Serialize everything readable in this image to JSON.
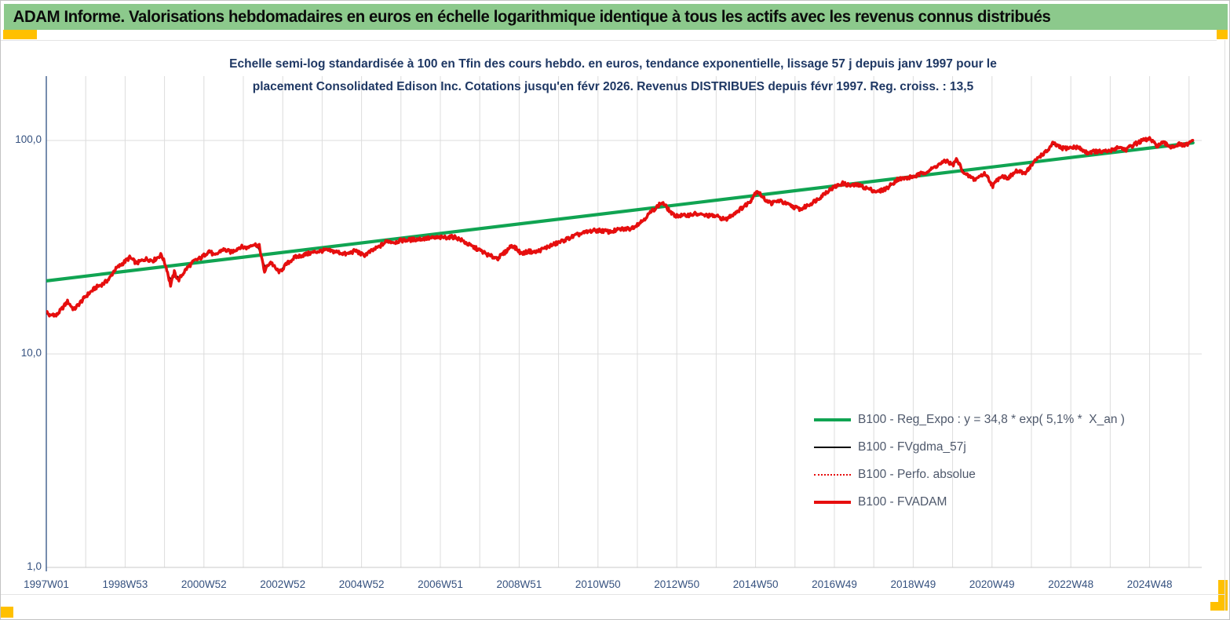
{
  "banner": {
    "text": "ADAM Informe. Valorisations hebdomadaires en euros en échelle logarithmique identique à tous les actifs avec les revenus connus distribués",
    "bg_color": "#8cc98c",
    "marker_color": "#ffc000"
  },
  "chart_data": {
    "type": "line",
    "title_line1": "Echelle semi-log standardisée à 100 en Tfin des cours hebdo. en euros, tendance exponentielle, lissage 57 j depuis janv 1997 pour le",
    "title_line2": "placement Consolidated Edison Inc. Cotations jusqu'en févr 2026. Revenus DISTRIBUES depuis févr 1997. Reg. croiss. : 13,5",
    "title_color": "#1F3864",
    "axes": {
      "y_scale": "log",
      "y_min": 1,
      "y_max": 200,
      "y_tick_values": [
        100,
        10,
        1
      ],
      "y_tick_labels": [
        "100,0",
        "10,0",
        "1,0"
      ],
      "x_start": 1997.0,
      "x_end": 2026.1,
      "x_gridline_interval_years": 1,
      "x_tick_labels": [
        "1997W01",
        "1998W53",
        "2000W52",
        "2002W52",
        "2004W52",
        "2006W51",
        "2008W51",
        "2010W50",
        "2012W50",
        "2014W50",
        "2016W49",
        "2018W49",
        "2020W49",
        "2022W48",
        "2024W48"
      ],
      "x_tick_interval_years": 2,
      "grid_color": "#dcdcdc",
      "axis_color": "#3d5c8c",
      "tick_label_color": "#35517f",
      "grid_on": true
    },
    "legend": {
      "position": "inside-right",
      "text_color": "#4e586b",
      "entries": [
        {
          "label": "B100 - Reg_Expo : y = 34,8 * exp( 5,1% *  X_an )",
          "color": "#10a452",
          "style": "thick"
        },
        {
          "label": "B100 - FVgdma_57j",
          "color": "#000000",
          "style": "medium"
        },
        {
          "label": "B100 - Perfo. absolue",
          "color": "#e60e0e",
          "style": "dotted"
        },
        {
          "label": "B100 - FVADAM",
          "color": "#e60e0e",
          "style": "thick"
        }
      ]
    },
    "series": [
      {
        "name": "B100 - Reg_Expo",
        "kind": "trend_exponential",
        "formula_shown": "y = 34,8 * exp( 5,1% * X_an )",
        "color": "#10a452",
        "points": [
          [
            1997.0,
            22.0
          ],
          [
            2026.1,
            97.5
          ]
        ]
      },
      {
        "name": "B100 - FVgdma_57j",
        "kind": "smoothed_moving_average_of_FVADAM",
        "color": "#000000"
      },
      {
        "name": "B100 - Perfo. absolue",
        "kind": "dotted_duplicate_of_FVADAM",
        "color": "#e60e0e"
      },
      {
        "name": "B100 - FVADAM",
        "kind": "weekly_valuation",
        "color": "#e60e0e",
        "final_value": 100,
        "points": [
          [
            1997.0,
            15.8
          ],
          [
            1997.1,
            15.0
          ],
          [
            1997.17,
            15.4
          ],
          [
            1997.25,
            15.1
          ],
          [
            1997.4,
            16.3
          ],
          [
            1997.54,
            17.6
          ],
          [
            1997.7,
            16.1
          ],
          [
            1997.85,
            17.3
          ],
          [
            1998.0,
            18.6
          ],
          [
            1998.26,
            20.5
          ],
          [
            1998.46,
            21.4
          ],
          [
            1998.6,
            22.5
          ],
          [
            1998.73,
            24.7
          ],
          [
            1998.92,
            26.4
          ],
          [
            1999.12,
            28.3
          ],
          [
            1999.29,
            26.6
          ],
          [
            1999.52,
            27.9
          ],
          [
            1999.72,
            27.4
          ],
          [
            1999.92,
            29.2
          ],
          [
            2000.05,
            25.3
          ],
          [
            2000.15,
            20.9
          ],
          [
            2000.25,
            24.1
          ],
          [
            2000.35,
            22.1
          ],
          [
            2000.55,
            25.0
          ],
          [
            2000.75,
            27.2
          ],
          [
            2000.94,
            28.3
          ],
          [
            2001.14,
            30.5
          ],
          [
            2001.27,
            28.7
          ],
          [
            2001.47,
            30.9
          ],
          [
            2001.7,
            30.0
          ],
          [
            2001.93,
            31.8
          ],
          [
            2002.1,
            31.4
          ],
          [
            2002.23,
            32.7
          ],
          [
            2002.4,
            32.2
          ],
          [
            2002.53,
            24.2
          ],
          [
            2002.63,
            26.2
          ],
          [
            2002.7,
            27.0
          ],
          [
            2002.82,
            25.0
          ],
          [
            2002.93,
            24.2
          ],
          [
            2003.1,
            26.4
          ],
          [
            2003.3,
            28.3
          ],
          [
            2003.56,
            29.2
          ],
          [
            2003.83,
            30.1
          ],
          [
            2004.09,
            30.6
          ],
          [
            2004.35,
            30.1
          ],
          [
            2004.62,
            29.3
          ],
          [
            2004.85,
            30.5
          ],
          [
            2005.05,
            28.9
          ],
          [
            2005.25,
            30.3
          ],
          [
            2005.45,
            31.8
          ],
          [
            2005.65,
            33.8
          ],
          [
            2005.85,
            33.4
          ],
          [
            2006.0,
            34.0
          ],
          [
            2006.3,
            34.3
          ],
          [
            2006.58,
            34.7
          ],
          [
            2006.9,
            35.0
          ],
          [
            2007.15,
            35.2
          ],
          [
            2007.37,
            35.3
          ],
          [
            2007.55,
            34.0
          ],
          [
            2007.73,
            32.4
          ],
          [
            2008.03,
            30.4
          ],
          [
            2008.25,
            28.8
          ],
          [
            2008.46,
            28.1
          ],
          [
            2008.65,
            30.0
          ],
          [
            2008.82,
            32.4
          ],
          [
            2009.06,
            29.5
          ],
          [
            2009.25,
            30.3
          ],
          [
            2009.4,
            29.9
          ],
          [
            2009.6,
            31.0
          ],
          [
            2009.8,
            32.2
          ],
          [
            2010.03,
            33.4
          ],
          [
            2010.25,
            34.8
          ],
          [
            2010.47,
            36.1
          ],
          [
            2010.83,
            37.7
          ],
          [
            2011.05,
            37.9
          ],
          [
            2011.3,
            37.3
          ],
          [
            2011.55,
            38.3
          ],
          [
            2011.84,
            38.7
          ],
          [
            2012.12,
            41.9
          ],
          [
            2012.41,
            47.4
          ],
          [
            2012.63,
            51.3
          ],
          [
            2012.91,
            44.6
          ],
          [
            2013.2,
            44.4
          ],
          [
            2013.45,
            45.3
          ],
          [
            2013.7,
            44.6
          ],
          [
            2014.0,
            44.2
          ],
          [
            2014.24,
            42.5
          ],
          [
            2014.45,
            45.5
          ],
          [
            2014.64,
            48.1
          ],
          [
            2014.85,
            51.5
          ],
          [
            2015.04,
            58.5
          ],
          [
            2015.2,
            53.5
          ],
          [
            2015.4,
            50.8
          ],
          [
            2015.6,
            52.3
          ],
          [
            2015.8,
            50.2
          ],
          [
            2016.0,
            48.6
          ],
          [
            2016.15,
            47.6
          ],
          [
            2016.4,
            50.6
          ],
          [
            2016.6,
            53.5
          ],
          [
            2016.8,
            57.5
          ],
          [
            2017.0,
            60.5
          ],
          [
            2017.2,
            63.0
          ],
          [
            2017.4,
            61.5
          ],
          [
            2017.6,
            61.8
          ],
          [
            2017.85,
            59.5
          ],
          [
            2018.1,
            57.4
          ],
          [
            2018.35,
            60.0
          ],
          [
            2018.6,
            65.8
          ],
          [
            2018.85,
            66.8
          ],
          [
            2019.05,
            68.0
          ],
          [
            2019.25,
            70.5
          ],
          [
            2019.45,
            73.0
          ],
          [
            2019.63,
            76.8
          ],
          [
            2019.86,
            80.5
          ],
          [
            2020.0,
            76.3
          ],
          [
            2020.1,
            81.6
          ],
          [
            2020.3,
            69.5
          ],
          [
            2020.48,
            67.2
          ],
          [
            2020.56,
            65.4
          ],
          [
            2020.7,
            68.3
          ],
          [
            2020.83,
            70.0
          ],
          [
            2021.02,
            61.2
          ],
          [
            2021.22,
            68.4
          ],
          [
            2021.42,
            66.7
          ],
          [
            2021.62,
            71.9
          ],
          [
            2021.82,
            70.1
          ],
          [
            2022.0,
            76.3
          ],
          [
            2022.2,
            84.3
          ],
          [
            2022.4,
            89.0
          ],
          [
            2022.55,
            97.0
          ],
          [
            2022.76,
            91.8
          ],
          [
            2023.0,
            92.5
          ],
          [
            2023.16,
            93.3
          ],
          [
            2023.4,
            87.7
          ],
          [
            2023.6,
            89.0
          ],
          [
            2023.8,
            88.4
          ],
          [
            2024.0,
            89.2
          ],
          [
            2024.2,
            93.3
          ],
          [
            2024.4,
            90.6
          ],
          [
            2024.6,
            95.7
          ],
          [
            2024.8,
            99.5
          ],
          [
            2025.0,
            101.8
          ],
          [
            2025.17,
            94.4
          ],
          [
            2025.35,
            97.2
          ],
          [
            2025.55,
            93.4
          ],
          [
            2025.75,
            95.8
          ],
          [
            2025.88,
            94.6
          ],
          [
            2026.0,
            96.5
          ],
          [
            2026.1,
            100.3
          ]
        ]
      }
    ]
  }
}
